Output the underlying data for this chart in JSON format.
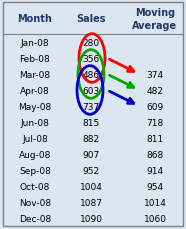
{
  "months": [
    "Jan-08",
    "Feb-08",
    "Mar-08",
    "Apr-08",
    "May-08",
    "Jun-08",
    "Jul-08",
    "Aug-08",
    "Sep-08",
    "Oct-08",
    "Nov-08",
    "Dec-08"
  ],
  "sales": [
    280,
    356,
    486,
    603,
    737,
    815,
    882,
    907,
    952,
    1004,
    1087,
    1090
  ],
  "moving_avg": [
    "",
    "",
    "374",
    "482",
    "609",
    "718",
    "811",
    "868",
    "914",
    "954",
    "1014",
    "1060"
  ],
  "bg_color": "#dce6f1",
  "text_color": "#000000",
  "header_text_color": "#1f3864",
  "border_color": "#808080",
  "oval_red_color": "#ff0000",
  "oval_green_color": "#00aa00",
  "oval_blue_color": "#0000cc",
  "arrow_red_color": "#ff0000",
  "arrow_green_color": "#00aa00",
  "arrow_blue_color": "#0000cc",
  "figw": 1.86,
  "figh": 2.3,
  "dpi": 100
}
